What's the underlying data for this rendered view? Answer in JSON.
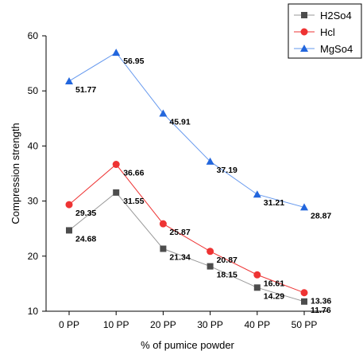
{
  "chart_data": {
    "type": "line",
    "categories": [
      "0 PP",
      "10 PP",
      "20 PP",
      "30 PP",
      "40 PP",
      "50 PP"
    ],
    "series": [
      {
        "name": "H2So4",
        "values": [
          24.68,
          31.55,
          21.34,
          18.15,
          14.29,
          11.76
        ],
        "color": "#4d4d4d",
        "line_color": "#999999",
        "marker": "square"
      },
      {
        "name": "Hcl",
        "values": [
          29.35,
          36.66,
          25.87,
          20.87,
          16.61,
          13.36
        ],
        "color": "#ee3333",
        "line_color": "#ee3333",
        "marker": "circle"
      },
      {
        "name": "MgSo4",
        "values": [
          51.77,
          56.95,
          45.91,
          37.19,
          31.21,
          28.87
        ],
        "color": "#2266dd",
        "line_color": "#6699ee",
        "marker": "triangle"
      }
    ],
    "xlabel": "% of pumice powder",
    "ylabel": "Compression strength",
    "ylim": [
      10,
      60
    ],
    "yticks": [
      10,
      20,
      30,
      40,
      50,
      60
    ],
    "legend": "top-right",
    "grid": false
  }
}
